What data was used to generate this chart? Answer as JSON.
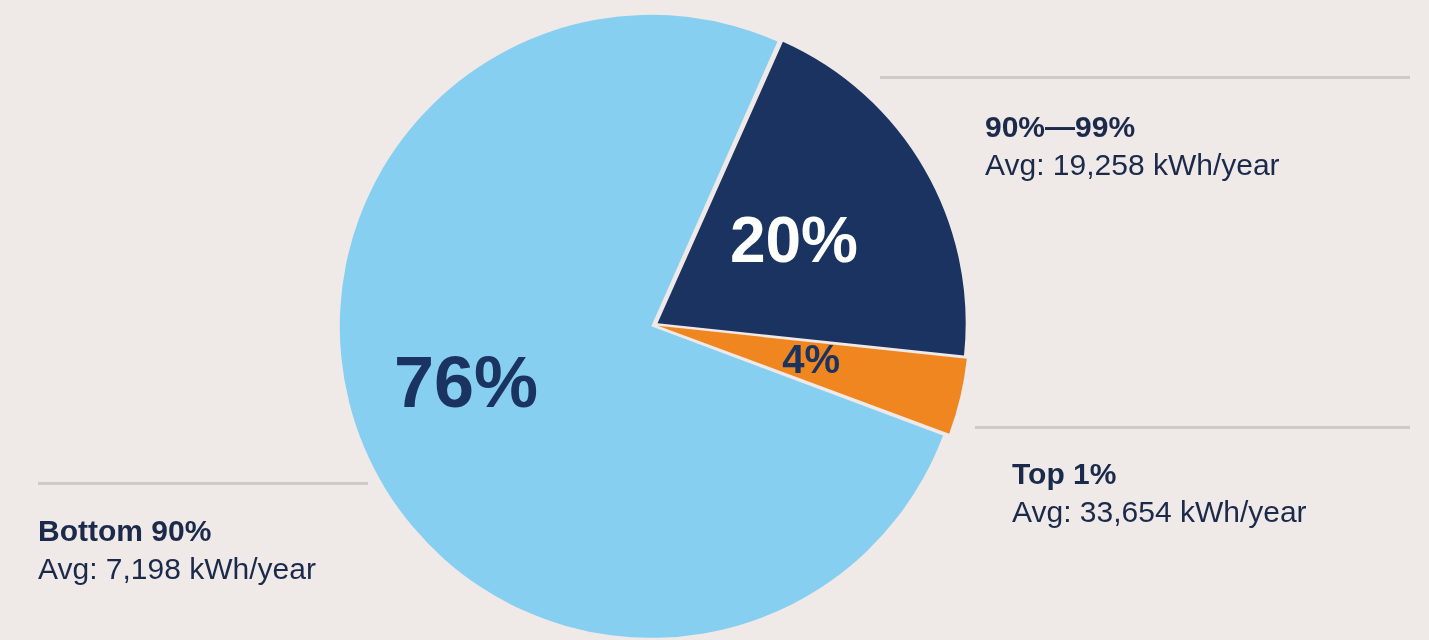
{
  "chart_data": {
    "type": "pie",
    "categories": [
      "90%—99%",
      "Top 1%",
      "Bottom 90%"
    ],
    "values": [
      20,
      4,
      76
    ],
    "colors": [
      "#1b3360",
      "#f0861f",
      "#86cff0"
    ],
    "value_labels": [
      "20%",
      "4%",
      "76%"
    ],
    "annotations": [
      "Avg: 19,258 kWh/year",
      "Avg: 33,654 kWh/year",
      "Avg: 7,198 kWh/year"
    ]
  }
}
